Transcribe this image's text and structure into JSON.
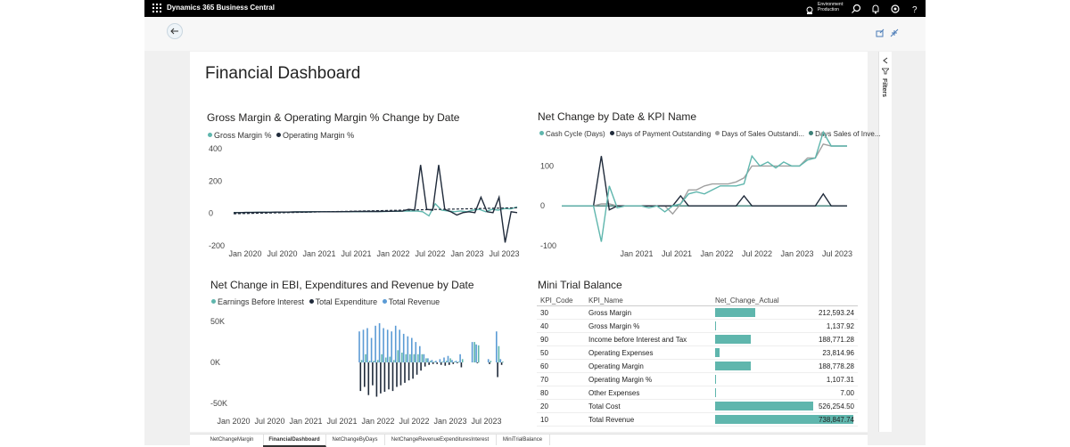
{
  "app": {
    "title": "Dynamics 365 Business Central",
    "environment_line1": "Environment:",
    "environment_line2": "Production",
    "icons": [
      "waffle-icon",
      "environment-icon",
      "search-icon",
      "bell-icon",
      "gear-icon",
      "help-icon"
    ]
  },
  "dashboard": {
    "title": "Financial Dashboard"
  },
  "filters": {
    "label": "Filters"
  },
  "visuals": {
    "gm": {
      "title": "Gross Margin & Operating Margin % Change by Date",
      "legend": [
        "Gross Margin %",
        "Operating Margin %"
      ]
    },
    "nc": {
      "title": "Net Change by Date & KPI Name",
      "legend": [
        "Cash Cycle (Days)",
        "Days of Payment Outstanding",
        "Days of Sales Outstandi...",
        "Days Sales of Inve..."
      ]
    },
    "ebi": {
      "title": "Net Change in EBI, Expenditures and Revenue by Date",
      "legend": [
        "Earnings Before Interest",
        "Total Expenditure",
        "Total Revenue"
      ]
    },
    "mtb": {
      "title": "Mini Trial Balance"
    }
  },
  "colors": {
    "teal": "#5fb6ad",
    "dark": "#1f2a3a",
    "gray": "#a0a0a0",
    "blue": "#5b9bd5"
  },
  "chart_data": [
    {
      "type": "line",
      "title": "Gross Margin & Operating Margin % Change by Date",
      "x_ticks": [
        "Jan 2020",
        "Jul 2020",
        "Jan 2021",
        "Jul 2021",
        "Jan 2022",
        "Jul 2022",
        "Jan 2023",
        "Jul 2023"
      ],
      "y_ticks": [
        "400",
        "200",
        "0",
        "-200"
      ],
      "ylim": [
        -200,
        400
      ],
      "series": [
        {
          "name": "Gross Margin %",
          "values": [
            5,
            5,
            6,
            6,
            7,
            7,
            7,
            8,
            8,
            8,
            9,
            9,
            9,
            10,
            10,
            10,
            10,
            10,
            11,
            11,
            11,
            12,
            12,
            12,
            12,
            13,
            13,
            14,
            14,
            15,
            10,
            -15,
            60,
            20,
            15,
            10,
            15,
            10,
            20,
            25,
            10,
            25,
            20,
            30,
            28,
            40
          ]
        },
        {
          "name": "Operating Margin %",
          "values": [
            5,
            5,
            6,
            6,
            7,
            7,
            7,
            8,
            8,
            8,
            9,
            9,
            9,
            10,
            10,
            10,
            10,
            10,
            11,
            11,
            12,
            12,
            12,
            12,
            12,
            13,
            13,
            14,
            14,
            25,
            20,
            300,
            25,
            20,
            300,
            25,
            10,
            -10,
            5,
            10,
            5,
            100,
            10,
            5,
            100,
            -180,
            10,
            5
          ]
        }
      ],
      "trend_line": {
        "from": -2,
        "to": 35
      }
    },
    {
      "type": "line",
      "title": "Net Change by Date & KPI Name",
      "x_ticks": [
        "Jan 2021",
        "Jul 2021",
        "Jan 2022",
        "Jul 2022",
        "Jan 2023",
        "Jul 2023"
      ],
      "y_ticks": [
        "100",
        "0",
        "-100"
      ],
      "ylim": [
        -100,
        150
      ],
      "series": [
        {
          "name": "Cash Cycle (Days)",
          "values": [
            0,
            0,
            0,
            0,
            0,
            -90,
            50,
            -5,
            0,
            0,
            0,
            -5,
            0,
            -15,
            0,
            5,
            30,
            35,
            30,
            40,
            50,
            50,
            50,
            55,
            125,
            100,
            110,
            95,
            110,
            100,
            100,
            115,
            120,
            185,
            150,
            150,
            150
          ]
        },
        {
          "name": "Days of Payment Outstanding",
          "values": [
            0,
            0,
            0,
            0,
            0,
            125,
            -10,
            0,
            0,
            0,
            0,
            0,
            0,
            0,
            0,
            25,
            0,
            0,
            0,
            0,
            0,
            0,
            0,
            25,
            0,
            0,
            0,
            0,
            0,
            0,
            0,
            0,
            0,
            30,
            0,
            0,
            0
          ]
        },
        {
          "name": "Days of Sales Outstandi...",
          "values": [
            0,
            0,
            0,
            0,
            0,
            5,
            5,
            0,
            0,
            0,
            0,
            0,
            0,
            0,
            -20,
            5,
            40,
            40,
            50,
            55,
            55,
            55,
            60,
            70,
            100,
            100,
            100,
            100,
            100,
            100,
            100,
            120,
            120,
            155,
            150,
            150,
            150
          ]
        },
        {
          "name": "Days Sales of Inve...",
          "values": [
            0,
            0,
            0,
            0,
            0,
            0,
            0,
            0,
            0,
            0,
            0,
            0,
            0,
            0,
            0,
            0,
            0,
            0,
            0,
            0,
            0,
            0,
            0,
            0,
            0,
            0,
            0,
            0,
            0,
            0,
            0,
            0,
            0,
            0,
            0,
            0,
            0
          ]
        }
      ]
    },
    {
      "type": "bar",
      "title": "Net Change in EBI, Expenditures and Revenue by Date",
      "x_ticks": [
        "Jan 2020",
        "Jul 2020",
        "Jan 2021",
        "Jul 2021",
        "Jan 2022",
        "Jul 2022",
        "Jan 2023",
        "Jul 2023"
      ],
      "y_ticks": [
        "50K",
        "0K",
        "-50K"
      ],
      "ylim": [
        -60000,
        60000
      ],
      "series": [
        {
          "name": "Total Revenue",
          "values": [
            0,
            0,
            0,
            0,
            0,
            0,
            0,
            0,
            0,
            0,
            0,
            0,
            0,
            0,
            0,
            0,
            0,
            0,
            0,
            0,
            0,
            0,
            0,
            0,
            0,
            0,
            0,
            0,
            0,
            0,
            0,
            38000,
            40000,
            42000,
            30000,
            45000,
            48000,
            42000,
            40000,
            38000,
            45000,
            40000,
            35000,
            32000,
            30000,
            25000,
            20000,
            10000,
            5000,
            3000,
            2000,
            4000,
            6000,
            8000,
            3000,
            2000,
            10000,
            0,
            0,
            25000,
            22000,
            0,
            0,
            4000,
            0,
            38000,
            4000
          ]
        },
        {
          "name": "Total Expenditure",
          "values": [
            0,
            0,
            0,
            0,
            0,
            0,
            0,
            0,
            0,
            0,
            0,
            0,
            0,
            0,
            0,
            0,
            0,
            0,
            0,
            0,
            0,
            0,
            0,
            0,
            0,
            0,
            0,
            0,
            0,
            0,
            0,
            -35000,
            -30000,
            -40000,
            -28000,
            -42000,
            -38000,
            -36000,
            -33000,
            -35000,
            -30000,
            -28000,
            -25000,
            -22000,
            -20000,
            -15000,
            -10000,
            -5000,
            -3000,
            -2000,
            -2000,
            -3000,
            -4000,
            -3000,
            -2000,
            -1000,
            -6000,
            0,
            0,
            0,
            -1000,
            0,
            0,
            -2000,
            0,
            -18000,
            -3000
          ]
        },
        {
          "name": "Earnings Before Interest",
          "values": [
            0,
            0,
            0,
            0,
            0,
            0,
            0,
            0,
            0,
            0,
            0,
            0,
            0,
            0,
            0,
            0,
            0,
            0,
            0,
            0,
            0,
            0,
            0,
            0,
            0,
            0,
            0,
            0,
            0,
            0,
            0,
            3000,
            10000,
            2000,
            2000,
            3000,
            10000,
            6000,
            7000,
            3000,
            15000,
            12000,
            10000,
            10000,
            10000,
            10000,
            10000,
            5000,
            2000,
            1000,
            0,
            1000,
            2000,
            5000,
            1000,
            1000,
            4000,
            0,
            0,
            25000,
            21000,
            0,
            0,
            2000,
            0,
            20000,
            1000
          ]
        }
      ]
    }
  ],
  "mini_trial_balance": {
    "headers": [
      "KPI_Code",
      "KPI_Name",
      "Net_Change_Actual"
    ],
    "rows": [
      {
        "code": "30",
        "name": "Gross Margin",
        "value": "212,593.24",
        "bar": 0.29
      },
      {
        "code": "40",
        "name": "Gross Margin %",
        "value": "1,137.92",
        "bar": 0.0
      },
      {
        "code": "90",
        "name": "Income before Interest and Tax",
        "value": "188,771.28",
        "bar": 0.26
      },
      {
        "code": "50",
        "name": "Operating Expenses",
        "value": "23,814.96",
        "bar": 0.03
      },
      {
        "code": "60",
        "name": "Operating Margin",
        "value": "188,778.28",
        "bar": 0.26
      },
      {
        "code": "70",
        "name": "Operating Margin %",
        "value": "1,107.31",
        "bar": 0.0
      },
      {
        "code": "80",
        "name": "Other Expenses",
        "value": "7.00",
        "bar": 0.0
      },
      {
        "code": "20",
        "name": "Total Cost",
        "value": "526,254.50",
        "bar": 0.71
      },
      {
        "code": "10",
        "name": "Total Revenue",
        "value": "738,847.74",
        "bar": 1.0
      }
    ]
  },
  "tabs": [
    "NetChangeMargin",
    "FinancialDashboard",
    "NetChangeByDays",
    "NetChangeRevenueExpendituresInterest",
    "MiniTrialBalance"
  ],
  "active_tab": "FinancialDashboard"
}
